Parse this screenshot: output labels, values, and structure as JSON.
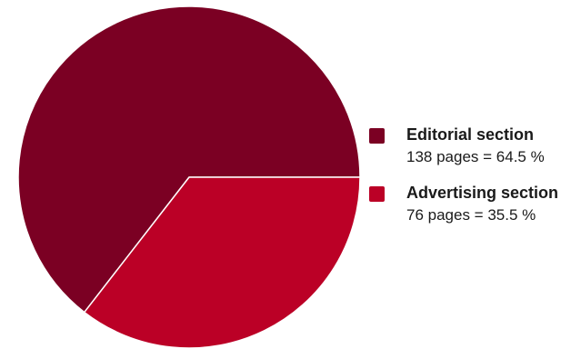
{
  "chart_data": {
    "type": "pie",
    "series": [
      {
        "name": "Editorial section",
        "detail": "138 pages = 64.5 %",
        "value": 64.5,
        "pages": 138,
        "color": "#7b0023"
      },
      {
        "name": "Advertising section",
        "detail": "76 pages = 35.5 %",
        "value": 35.5,
        "pages": 76,
        "color": "#bb0026"
      }
    ],
    "legend_position": "right"
  }
}
